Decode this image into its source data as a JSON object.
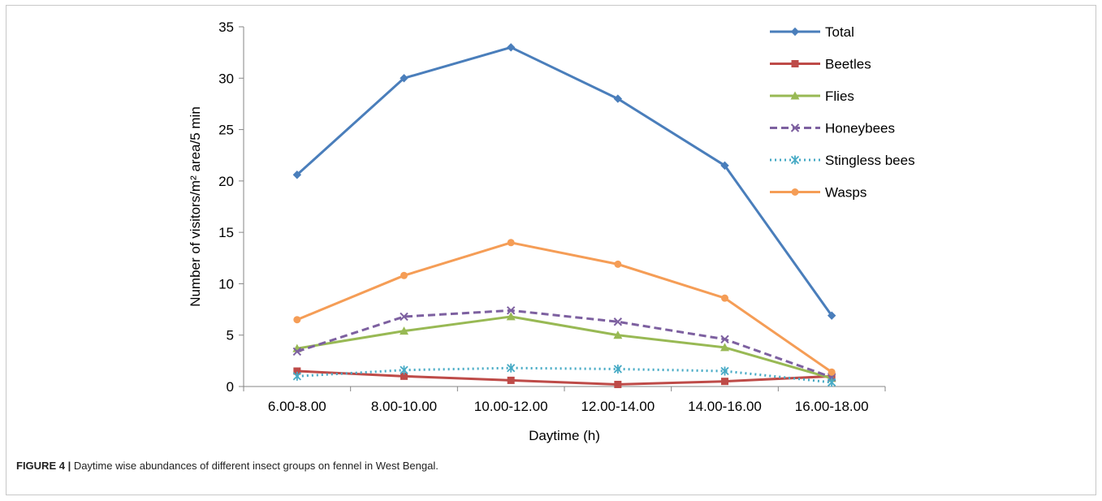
{
  "caption": {
    "label": "FIGURE 4 |",
    "text": " Daytime wise abundances of different insect groups on fennel in West Bengal."
  },
  "chart_data": {
    "type": "line",
    "categories": [
      "6.00-8.00",
      "8.00-10.00",
      "10.00-12.00",
      "12.00-14.00",
      "14.00-16.00",
      "16.00-18.00"
    ],
    "xlabel": "Daytime (h)",
    "ylabel": "Number of visitors/m² area/5 min",
    "ylim": [
      0,
      35
    ],
    "yticks": [
      0,
      5,
      10,
      15,
      20,
      25,
      30,
      35
    ],
    "grid": false,
    "legend_position": "top-right",
    "series": [
      {
        "name": "Total",
        "color": "#4a7ebb",
        "marker": "diamond",
        "dash": "solid",
        "values": [
          20.6,
          30.0,
          33.0,
          28.0,
          21.5,
          6.9
        ]
      },
      {
        "name": "Beetles",
        "color": "#be4b48",
        "marker": "square",
        "dash": "solid",
        "values": [
          1.5,
          1.0,
          0.6,
          0.2,
          0.5,
          1.0
        ]
      },
      {
        "name": "Flies",
        "color": "#98b954",
        "marker": "triangle",
        "dash": "solid",
        "values": [
          3.7,
          5.4,
          6.8,
          5.0,
          3.8,
          0.8
        ]
      },
      {
        "name": "Honeybees",
        "color": "#7d60a0",
        "marker": "x",
        "dash": "dashed",
        "values": [
          3.4,
          6.8,
          7.4,
          6.3,
          4.6,
          0.9
        ]
      },
      {
        "name": "Stingless bees",
        "color": "#46aac5",
        "marker": "asterisk",
        "dash": "dotted",
        "values": [
          1.0,
          1.6,
          1.8,
          1.7,
          1.5,
          0.4
        ]
      },
      {
        "name": "Wasps",
        "color": "#f59d56",
        "marker": "circle",
        "dash": "solid",
        "values": [
          6.5,
          10.8,
          14.0,
          11.9,
          8.6,
          1.4
        ]
      }
    ]
  }
}
